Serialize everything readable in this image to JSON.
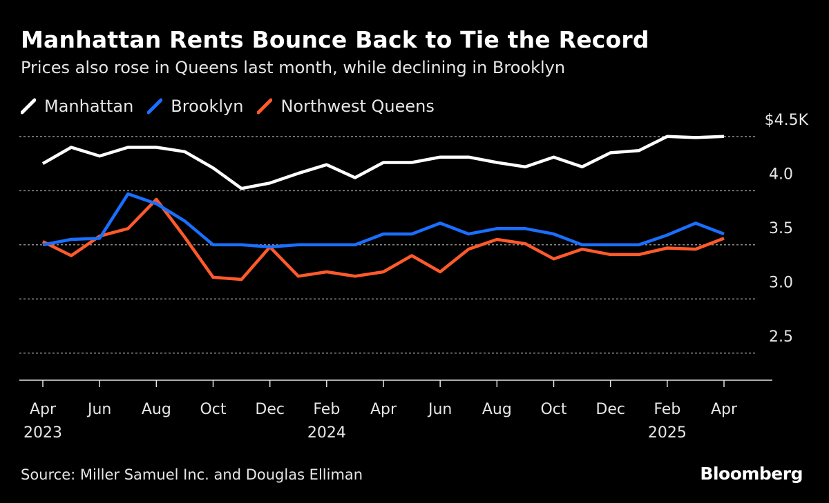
{
  "header": {
    "title": "Manhattan Rents Bounce Back to Tie the Record",
    "subtitle": "Prices also rose in Queens last month, while declining in Brooklyn"
  },
  "legend": [
    {
      "label": "Manhattan",
      "color": "#ffffff"
    },
    {
      "label": "Brooklyn",
      "color": "#1a6fff"
    },
    {
      "label": "Northwest Queens",
      "color": "#ff5a2b"
    }
  ],
  "footer": {
    "source": "Source: Miller Samuel Inc. and Douglas Elliman",
    "brand": "Bloomberg"
  },
  "chart_data": {
    "type": "line",
    "x": [
      "2023-04",
      "2023-05",
      "2023-06",
      "2023-07",
      "2023-08",
      "2023-09",
      "2023-10",
      "2023-11",
      "2023-12",
      "2024-01",
      "2024-02",
      "2024-03",
      "2024-04",
      "2024-05",
      "2024-06",
      "2024-07",
      "2024-08",
      "2024-09",
      "2024-10",
      "2024-11",
      "2024-12",
      "2025-01",
      "2025-02",
      "2025-03",
      "2025-04"
    ],
    "series": [
      {
        "name": "Manhattan",
        "color": "#ffffff",
        "values": [
          4.25,
          4.4,
          4.32,
          4.4,
          4.4,
          4.36,
          4.21,
          4.02,
          4.07,
          4.16,
          4.24,
          4.12,
          4.26,
          4.26,
          4.31,
          4.31,
          4.26,
          4.22,
          4.31,
          4.22,
          4.35,
          4.37,
          4.5,
          4.49,
          4.5
        ]
      },
      {
        "name": "Brooklyn",
        "color": "#1a6fff",
        "values": [
          3.5,
          3.55,
          3.56,
          3.97,
          3.88,
          3.72,
          3.5,
          3.5,
          3.48,
          3.5,
          3.5,
          3.5,
          3.6,
          3.6,
          3.7,
          3.6,
          3.65,
          3.65,
          3.6,
          3.5,
          3.5,
          3.5,
          3.59,
          3.7,
          3.6
        ]
      },
      {
        "name": "Northwest Queens",
        "color": "#ff5a2b",
        "values": [
          3.53,
          3.4,
          3.58,
          3.65,
          3.92,
          3.57,
          3.2,
          3.18,
          3.48,
          3.21,
          3.25,
          3.21,
          3.25,
          3.4,
          3.25,
          3.46,
          3.55,
          3.51,
          3.37,
          3.46,
          3.41,
          3.41,
          3.47,
          3.46,
          3.56
        ]
      }
    ],
    "y_ticks": [
      "2.5",
      "3.0",
      "3.5",
      "4.0",
      "$4.5K"
    ],
    "ylim": [
      2.25,
      4.55
    ],
    "y_tick_values": [
      2.5,
      3.0,
      3.5,
      4.0,
      4.5
    ],
    "x_ticks": [
      {
        "index": 0,
        "label": "Apr",
        "year": "2023"
      },
      {
        "index": 2,
        "label": "Jun",
        "year": ""
      },
      {
        "index": 4,
        "label": "Aug",
        "year": ""
      },
      {
        "index": 6,
        "label": "Oct",
        "year": ""
      },
      {
        "index": 8,
        "label": "Dec",
        "year": ""
      },
      {
        "index": 10,
        "label": "Feb",
        "year": "2024"
      },
      {
        "index": 12,
        "label": "Apr",
        "year": ""
      },
      {
        "index": 14,
        "label": "Jun",
        "year": ""
      },
      {
        "index": 16,
        "label": "Aug",
        "year": ""
      },
      {
        "index": 18,
        "label": "Oct",
        "year": ""
      },
      {
        "index": 20,
        "label": "Dec",
        "year": ""
      },
      {
        "index": 22,
        "label": "Feb",
        "year": "2025"
      },
      {
        "index": 24,
        "label": "Apr",
        "year": ""
      }
    ],
    "grid": true,
    "legend_position": "top-left",
    "y_axis_side": "right"
  }
}
